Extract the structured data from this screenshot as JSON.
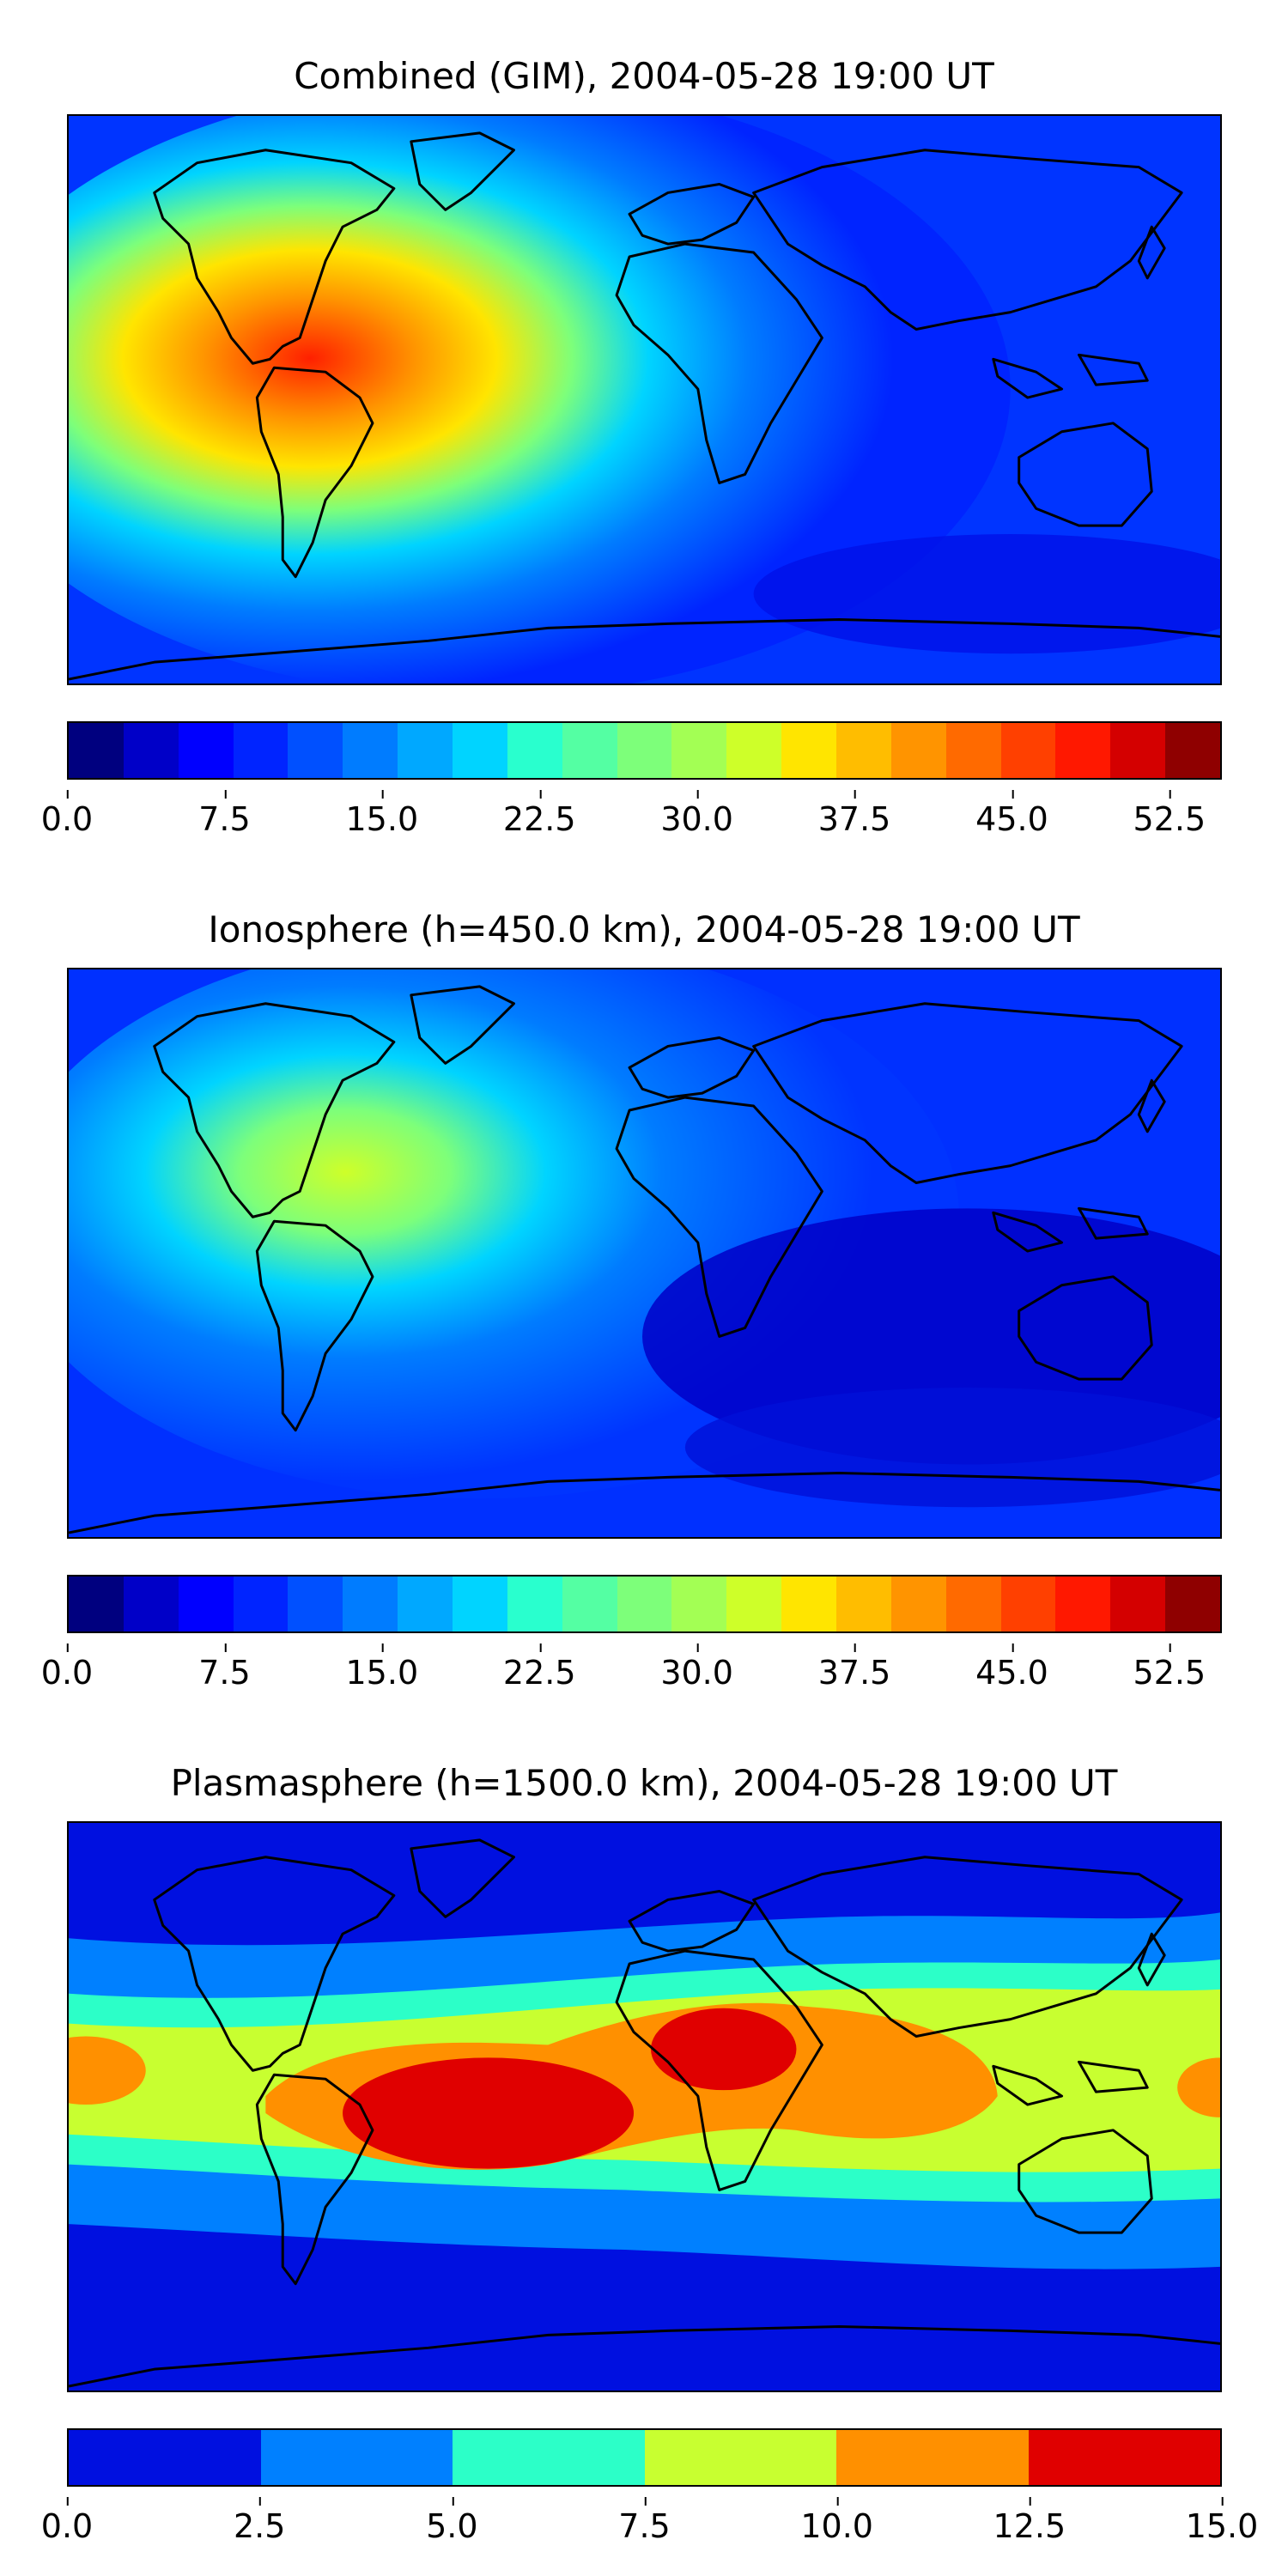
{
  "panels": [
    {
      "title": "Combined (GIM), 2004-05-28 19:00 UT",
      "colorbar": {
        "colors": [
          "#00007f",
          "#0000c8",
          "#0000ff",
          "#0024ff",
          "#0050ff",
          "#007cff",
          "#00a8ff",
          "#00d4ff",
          "#29ffce",
          "#54ffa3",
          "#7dff7a",
          "#a3ff54",
          "#ceff29",
          "#ffe500",
          "#ffbd00",
          "#ff9400",
          "#ff6a00",
          "#ff4000",
          "#ff1800",
          "#d40000",
          "#8f0000"
        ],
        "ticks": [
          "0.0",
          "7.5",
          "15.0",
          "22.5",
          "30.0",
          "37.5",
          "45.0",
          "52.5"
        ],
        "min": 0,
        "max": 55,
        "tick_values": [
          0,
          7.5,
          15,
          22.5,
          30,
          37.5,
          45,
          52.5
        ]
      }
    },
    {
      "title": "Ionosphere  (h=450.0 km), 2004-05-28 19:00 UT",
      "colorbar": {
        "colors": [
          "#00007f",
          "#0000c8",
          "#0000ff",
          "#0024ff",
          "#0050ff",
          "#007cff",
          "#00a8ff",
          "#00d4ff",
          "#29ffce",
          "#54ffa3",
          "#7dff7a",
          "#a3ff54",
          "#ceff29",
          "#ffe500",
          "#ffbd00",
          "#ff9400",
          "#ff6a00",
          "#ff4000",
          "#ff1800",
          "#d40000",
          "#8f0000"
        ],
        "ticks": [
          "0.0",
          "7.5",
          "15.0",
          "22.5",
          "30.0",
          "37.5",
          "45.0",
          "52.5"
        ],
        "min": 0,
        "max": 55,
        "tick_values": [
          0,
          7.5,
          15,
          22.5,
          30,
          37.5,
          45,
          52.5
        ]
      }
    },
    {
      "title": "Plasmasphere (h=1500.0 km), 2004-05-28 19:00 UT",
      "colorbar": {
        "colors": [
          "#0010e0",
          "#0080ff",
          "#2cffc8",
          "#c8ff30",
          "#ff9000",
          "#e00000"
        ],
        "ticks": [
          "0.0",
          "2.5",
          "5.0",
          "7.5",
          "10.0",
          "12.5",
          "15.0"
        ],
        "min": 0,
        "max": 15,
        "tick_values": [
          0,
          2.5,
          5,
          7.5,
          10,
          12.5,
          15
        ]
      }
    }
  ]
}
